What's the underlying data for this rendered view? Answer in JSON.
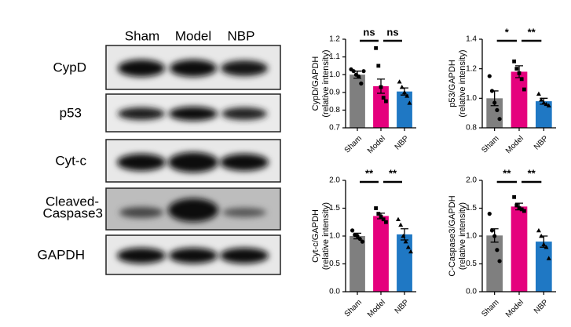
{
  "blot": {
    "lanes": [
      "Sham",
      "Model",
      "NBP"
    ],
    "rows": [
      "CypD",
      "p53",
      "Cyt-c",
      [
        "Cleaved-",
        "Caspase3"
      ],
      "GAPDH"
    ]
  },
  "chart_data": [
    {
      "type": "bar",
      "ylabel": [
        "CypD/GAPDH",
        "(relative intensity)"
      ],
      "categories": [
        "Sham",
        "Model",
        "NBP"
      ],
      "colors": [
        "#7f7f7f",
        "#e5007d",
        "#1f78c4"
      ],
      "values": [
        1.0,
        0.935,
        0.905
      ],
      "errors": [
        0.02,
        0.04,
        0.02
      ],
      "points": [
        [
          1.03,
          1.02,
          1.0,
          0.99,
          0.95,
          1.02
        ],
        [
          1.15,
          1.05,
          0.93,
          0.87,
          0.85
        ],
        [
          0.96,
          0.93,
          0.9,
          0.88,
          0.84
        ]
      ],
      "ylim": [
        0.7,
        1.2
      ],
      "yticks": [
        0.7,
        0.8,
        0.9,
        {
          "value": 1.0,
          "label": "1.0"
        },
        1.1,
        1.2
      ],
      "annotations": [
        "ns",
        "ns"
      ]
    },
    {
      "type": "bar",
      "ylabel": [
        "p53/GAPDH",
        "(relative intensity)"
      ],
      "categories": [
        "Sham",
        "Model",
        "NBP"
      ],
      "colors": [
        "#7f7f7f",
        "#e5007d",
        "#1f78c4"
      ],
      "values": [
        1.0,
        1.18,
        0.98
      ],
      "errors": [
        0.05,
        0.04,
        0.02
      ],
      "points": [
        [
          1.15,
          1.05,
          0.97,
          0.92,
          0.86
        ],
        [
          1.25,
          1.2,
          1.17,
          1.13,
          1.06
        ],
        [
          1.03,
          0.99,
          0.97,
          0.96,
          0.95
        ]
      ],
      "ylim": [
        0.8,
        1.4
      ],
      "yticks": [
        0.8,
        {
          "value": 1.0,
          "label": "1.0"
        },
        1.2,
        1.4
      ],
      "annotations": [
        "*",
        "**"
      ]
    },
    {
      "type": "bar",
      "ylabel": [
        "Cyt-c/GAPDH",
        "(relative intensity)"
      ],
      "categories": [
        "Sham",
        "Model",
        "NBP"
      ],
      "colors": [
        "#7f7f7f",
        "#e5007d",
        "#1f78c4"
      ],
      "values": [
        1.0,
        1.36,
        1.03
      ],
      "errors": [
        0.05,
        0.05,
        0.1
      ],
      "points": [
        [
          1.1,
          1.02,
          1.0,
          0.95,
          0.9
        ],
        [
          1.5,
          1.4,
          1.35,
          1.3,
          1.25
        ],
        [
          1.3,
          1.2,
          1.0,
          0.9,
          0.8,
          0.72
        ]
      ],
      "ylim": [
        0,
        2
      ],
      "yticks": [
        {
          "value": 0,
          "label": "0.0"
        },
        0.5,
        {
          "value": 1,
          "label": "1.0"
        },
        1.5,
        {
          "value": 2,
          "label": "2.0"
        }
      ],
      "annotations": [
        "**",
        "**"
      ]
    },
    {
      "type": "bar",
      "ylabel": [
        "C-Caspase3/GAPDH",
        "(relative intensity)"
      ],
      "categories": [
        "Sham",
        "Model",
        "NBP"
      ],
      "colors": [
        "#7f7f7f",
        "#e5007d",
        "#1f78c4"
      ],
      "values": [
        1.01,
        1.53,
        0.9
      ],
      "errors": [
        0.12,
        0.06,
        0.1
      ],
      "points": [
        [
          1.4,
          1.1,
          1.0,
          0.75,
          0.55
        ],
        [
          1.7,
          1.55,
          1.5,
          1.48,
          1.45
        ],
        [
          1.1,
          1.0,
          0.85,
          0.8,
          0.6
        ]
      ],
      "ylim": [
        0,
        2
      ],
      "yticks": [
        {
          "value": 0,
          "label": "0.0"
        },
        0.5,
        {
          "value": 1,
          "label": "1.0"
        },
        1.5,
        {
          "value": 2,
          "label": "2.0"
        }
      ],
      "annotations": [
        "**",
        "**"
      ]
    }
  ]
}
